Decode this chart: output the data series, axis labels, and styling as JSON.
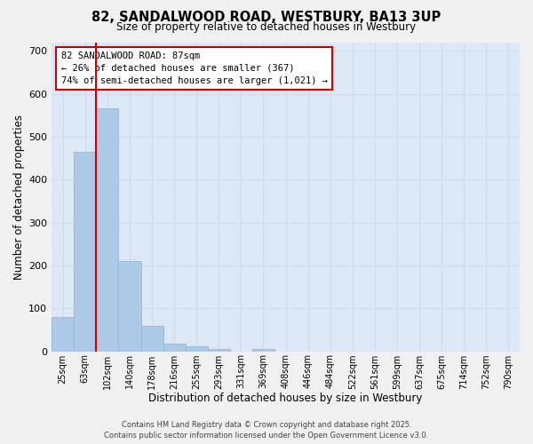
{
  "title": "82, SANDALWOOD ROAD, WESTBURY, BA13 3UP",
  "subtitle": "Size of property relative to detached houses in Westbury",
  "xlabel": "Distribution of detached houses by size in Westbury",
  "ylabel": "Number of detached properties",
  "categories": [
    "25sqm",
    "63sqm",
    "102sqm",
    "140sqm",
    "178sqm",
    "216sqm",
    "255sqm",
    "293sqm",
    "331sqm",
    "369sqm",
    "408sqm",
    "446sqm",
    "484sqm",
    "522sqm",
    "561sqm",
    "599sqm",
    "637sqm",
    "675sqm",
    "714sqm",
    "752sqm",
    "790sqm"
  ],
  "values": [
    80,
    465,
    565,
    210,
    60,
    18,
    12,
    5,
    0,
    6,
    0,
    0,
    0,
    0,
    0,
    0,
    0,
    0,
    0,
    0,
    0
  ],
  "bar_color": "#adc9e8",
  "bar_edge_color": "#8fb8d8",
  "grid_color": "#cdd8ea",
  "background_color": "#dce8f5",
  "vline_color": "#cc0000",
  "annotation_text": "82 SANDALWOOD ROAD: 87sqm\n← 26% of detached houses are smaller (367)\n74% of semi-detached houses are larger (1,021) →",
  "annotation_box_color": "#ffffff",
  "annotation_box_edge": "#cc0000",
  "ylim": [
    0,
    720
  ],
  "yticks": [
    0,
    100,
    200,
    300,
    400,
    500,
    600,
    700
  ],
  "footer_line1": "Contains HM Land Registry data © Crown copyright and database right 2025.",
  "footer_line2": "Contains public sector information licensed under the Open Government Licence v3.0."
}
